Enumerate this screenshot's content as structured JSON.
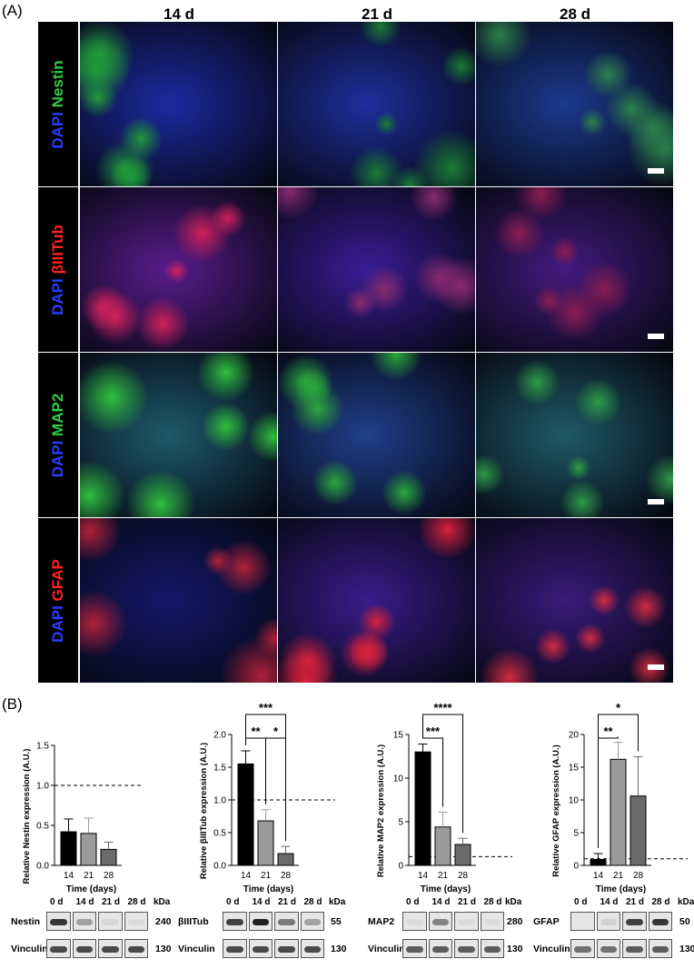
{
  "panel_a": {
    "label": "(A)",
    "columns": [
      "14 d",
      "21 d",
      "28 d"
    ],
    "rows": [
      {
        "dapi": "DAPI",
        "marker": "Nestin",
        "marker_color": "#2ecc40",
        "cells": [
          {
            "base": "#1c2aa0",
            "overlay": "#1f9a3a"
          },
          {
            "base": "#1e2f9c",
            "overlay": "#1a7a35"
          },
          {
            "base": "#1b3a8e",
            "overlay": "#2c7f4a"
          }
        ]
      },
      {
        "dapi": "DAPI",
        "marker": "βIIITub",
        "marker_color": "#ff2020",
        "cells": [
          {
            "base": "#5a1c8c",
            "overlay": "#d0205a"
          },
          {
            "base": "#3a1c95",
            "overlay": "#8a2a70"
          },
          {
            "base": "#441a7e",
            "overlay": "#8a1c50"
          }
        ]
      },
      {
        "dapi": "DAPI",
        "marker": "MAP2",
        "marker_color": "#2ecc40",
        "cells": [
          {
            "base": "#1d5a6a",
            "overlay": "#2fbf3c"
          },
          {
            "base": "#1f3f8a",
            "overlay": "#2aa83a"
          },
          {
            "base": "#1e5a64",
            "overlay": "#2e9a46"
          }
        ]
      },
      {
        "dapi": "DAPI",
        "marker": "GFAP",
        "marker_color": "#ff2020",
        "cells": [
          {
            "base": "#14186a",
            "overlay": "#b0203a"
          },
          {
            "base": "#3a1c8a",
            "overlay": "#d8203c"
          },
          {
            "base": "#3a1a7a",
            "overlay": "#d02a40"
          }
        ]
      }
    ]
  },
  "panel_b": {
    "label": "(B)",
    "charts": [
      {
        "ylabel": "Relative Nestin expression (A.U.)",
        "xlabel": "Time (days)"
      },
      {
        "ylabel": "Relative βIIITub expression (A.U.)",
        "xlabel": "Time (days)"
      },
      {
        "ylabel": "Relative MAP2 expression (A.U.)",
        "xlabel": "Time (days)"
      },
      {
        "ylabel": "Relative GFAP expression (A.U.)",
        "xlabel": "Time (days)"
      }
    ],
    "blots": [
      {
        "protein": "Nestin",
        "kda_top": "240",
        "loading": "Vinculin",
        "kda_bottom": "130",
        "lanes": [
          "0 d",
          "14 d",
          "21 d",
          "28 d"
        ],
        "kda_head": "kDa",
        "top_intensity": [
          0.9,
          0.35,
          0.08,
          0.05
        ],
        "bottom_intensity": [
          0.8,
          0.8,
          0.8,
          0.8
        ]
      },
      {
        "protein": "βIIITub",
        "kda_top": "55",
        "loading": "Vinculin",
        "kda_bottom": "130",
        "lanes": [
          "0 d",
          "14 d",
          "21 d",
          "28 d"
        ],
        "kda_head": "kDa",
        "top_intensity": [
          0.85,
          1.0,
          0.55,
          0.35
        ],
        "bottom_intensity": [
          0.8,
          0.8,
          0.8,
          0.8
        ]
      },
      {
        "protein": "MAP2",
        "kda_top": "280",
        "loading": "Vinculin",
        "kda_bottom": "130",
        "lanes": [
          "0 d",
          "14 d",
          "21 d",
          "28 d"
        ],
        "kda_head": "kDa",
        "top_intensity": [
          0.05,
          0.5,
          0.05,
          0.05
        ],
        "bottom_intensity": [
          0.7,
          0.7,
          0.7,
          0.7
        ]
      },
      {
        "protein": "GFAP",
        "kda_top": "50",
        "loading": "Vinculin",
        "kda_bottom": "130",
        "lanes": [
          "0 d",
          "14 d",
          "21 d",
          "28 d"
        ],
        "kda_head": "kDa",
        "top_intensity": [
          0.0,
          0.1,
          0.85,
          0.9
        ],
        "bottom_intensity": [
          0.6,
          0.6,
          0.7,
          0.7
        ]
      }
    ]
  },
  "chart_data": [
    {
      "type": "bar",
      "categories": [
        "14",
        "21",
        "28"
      ],
      "values": [
        0.42,
        0.4,
        0.2
      ],
      "errors": [
        0.16,
        0.19,
        0.09
      ],
      "colors": [
        "#000000",
        "#9a9a9a",
        "#6a6a6a"
      ],
      "ylim": [
        0,
        1.5
      ],
      "yticks": [
        "0.0",
        "0.5",
        "1.0",
        "1.5"
      ],
      "reference_line": 1.0,
      "ylabel": "Relative Nestin expression (A.U.)",
      "xlabel": "Time (days)",
      "significance": []
    },
    {
      "type": "bar",
      "categories": [
        "14",
        "21",
        "28"
      ],
      "values": [
        1.55,
        0.68,
        0.18
      ],
      "errors": [
        0.2,
        0.17,
        0.11
      ],
      "colors": [
        "#000000",
        "#9a9a9a",
        "#6a6a6a"
      ],
      "ylim": [
        0,
        2.0
      ],
      "yticks": [
        "0.0",
        "0.5",
        "1.0",
        "1.5",
        "2.0"
      ],
      "reference_line": 1.0,
      "ylabel": "Relative βIIITub expression (A.U.)",
      "xlabel": "Time (days)",
      "significance": [
        {
          "from": "14",
          "to": "21",
          "label": "**"
        },
        {
          "from": "21",
          "to": "28",
          "label": "*"
        },
        {
          "from": "14",
          "to": "28",
          "label": "***"
        }
      ]
    },
    {
      "type": "bar",
      "categories": [
        "14",
        "21",
        "28"
      ],
      "values": [
        13.0,
        4.4,
        2.4
      ],
      "errors": [
        0.9,
        1.7,
        0.7
      ],
      "colors": [
        "#000000",
        "#9a9a9a",
        "#6a6a6a"
      ],
      "ylim": [
        0,
        15
      ],
      "yticks": [
        "0",
        "5",
        "10",
        "15"
      ],
      "reference_line": 1.0,
      "ylabel": "Relative MAP2 expression (A.U.)",
      "xlabel": "Time (days)",
      "significance": [
        {
          "from": "14",
          "to": "21",
          "label": "***"
        },
        {
          "from": "14",
          "to": "28",
          "label": "****"
        }
      ]
    },
    {
      "type": "bar",
      "categories": [
        "14",
        "21",
        "28"
      ],
      "values": [
        0.9,
        16.2,
        10.6
      ],
      "errors": [
        0.9,
        2.6,
        6.0
      ],
      "colors": [
        "#000000",
        "#9a9a9a",
        "#6a6a6a"
      ],
      "ylim": [
        0,
        20
      ],
      "yticks": [
        "0",
        "5",
        "10",
        "15",
        "20"
      ],
      "reference_line": 1.0,
      "ylabel": "Relative GFAP expression (A.U.)",
      "xlabel": "Time (days)",
      "significance": [
        {
          "from": "14",
          "to": "21",
          "label": "**"
        },
        {
          "from": "14",
          "to": "28",
          "label": "*"
        }
      ]
    }
  ]
}
